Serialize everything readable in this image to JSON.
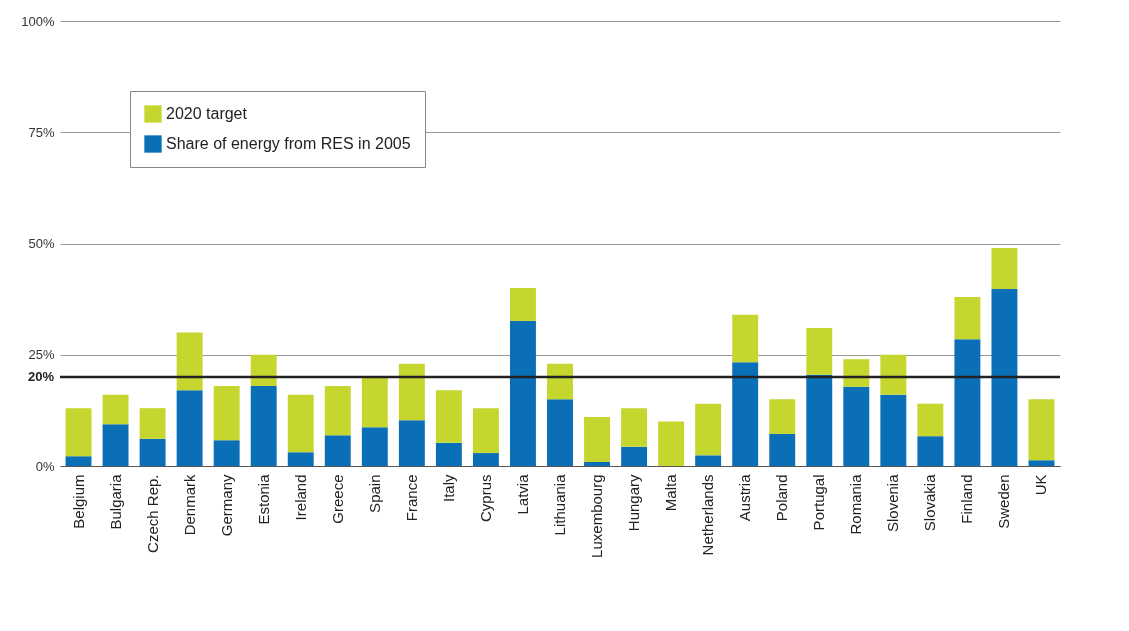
{
  "chart_data": {
    "type": "bar",
    "stacked": true,
    "categories": [
      "Belgium",
      "Bulgaria",
      "Czech Rep.",
      "Denmark",
      "Germany",
      "Estonia",
      "Ireland",
      "Greece",
      "Spain",
      "France",
      "Italy",
      "Cyprus",
      "Latvia",
      "Lithuania",
      "Luxembourg",
      "Hungary",
      "Malta",
      "Netherlands",
      "Austria",
      "Poland",
      "Portugal",
      "Romania",
      "Slovenia",
      "Slovakia",
      "Finland",
      "Sweden",
      "UK"
    ],
    "series": [
      {
        "name": "Share of energy from RES in 2005",
        "color": "#0b6fb8",
        "values": [
          2.2,
          9.4,
          6.1,
          17,
          5.8,
          18,
          3.1,
          6.9,
          8.7,
          10.3,
          5.2,
          2.9,
          32.6,
          15,
          0.9,
          4.3,
          0,
          2.4,
          23.3,
          7.2,
          20.5,
          17.8,
          16,
          6.7,
          28.5,
          39.8,
          1.3
        ]
      },
      {
        "name": "2020 target",
        "color": "#c5d72f",
        "values": [
          10.8,
          6.6,
          6.9,
          13,
          12.2,
          7,
          12.9,
          11.1,
          11.3,
          12.7,
          11.8,
          10.1,
          7.4,
          8,
          10.1,
          8.7,
          10,
          11.6,
          10.7,
          7.8,
          10.5,
          6.2,
          9,
          7.3,
          9.5,
          9.2,
          13.7
        ]
      }
    ],
    "ylim": [
      0,
      100
    ],
    "yticks": [
      {
        "value": 0,
        "label": "0%"
      },
      {
        "value": 25,
        "label": "25%"
      },
      {
        "value": 50,
        "label": "50%"
      },
      {
        "value": 75,
        "label": "75%"
      },
      {
        "value": 100,
        "label": "100%"
      }
    ],
    "grid": "y",
    "legend": "top left",
    "ref_lines": [
      {
        "axis": "y",
        "value": 20,
        "label": "20%",
        "color": "#222222"
      }
    ]
  }
}
